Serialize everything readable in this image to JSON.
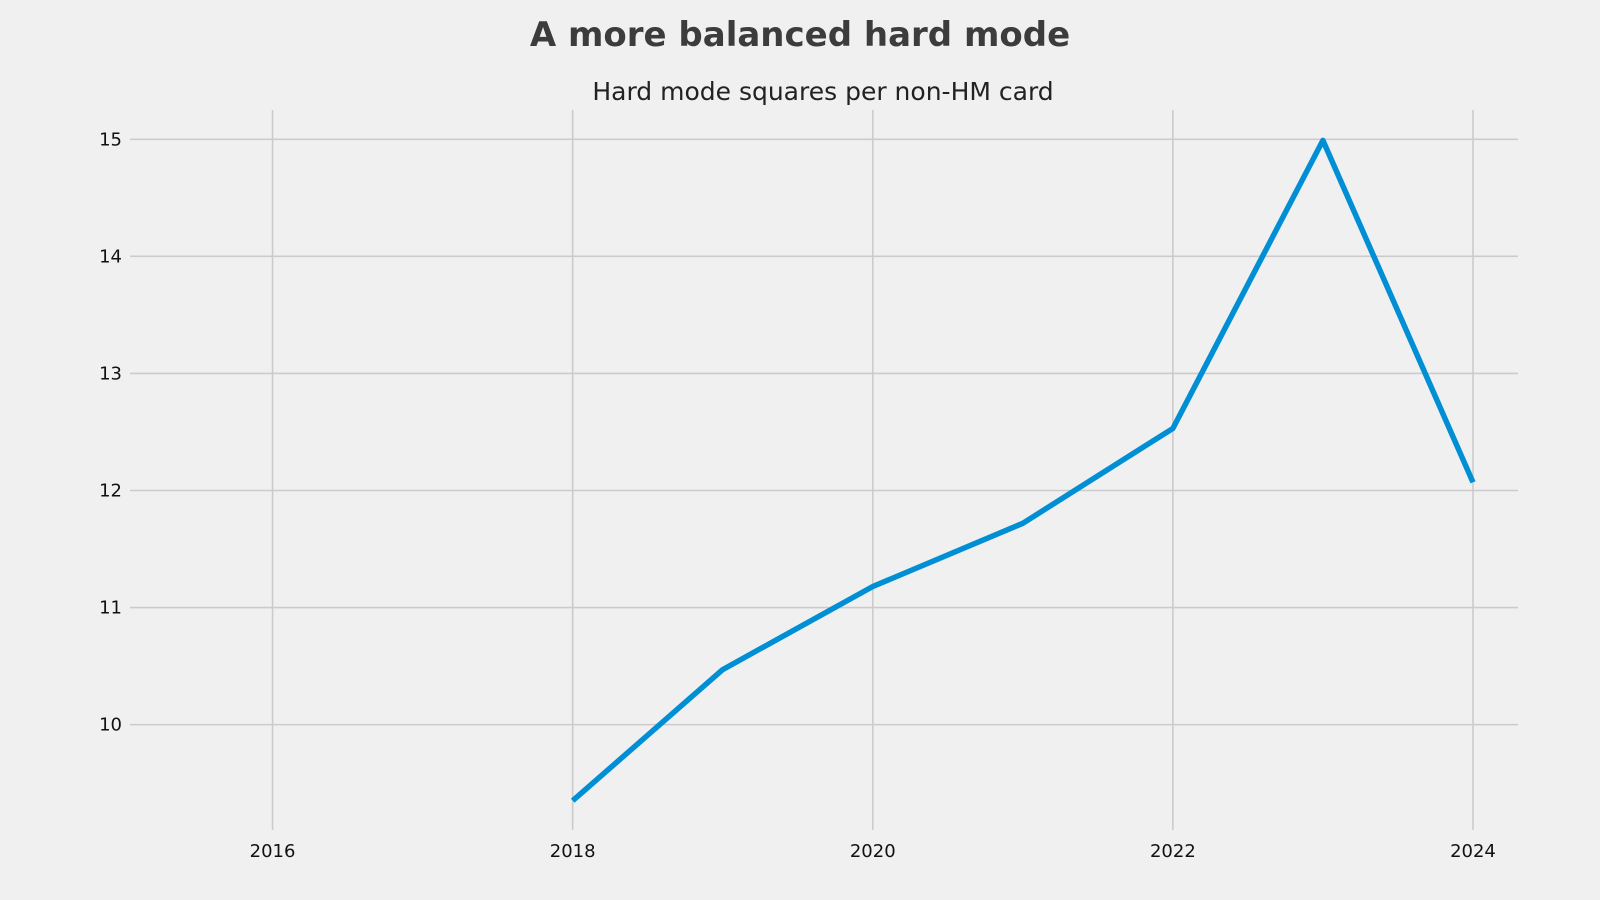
{
  "chart_data": {
    "type": "line",
    "title": "A more balanced hard mode",
    "subtitle": "Hard mode squares per non-HM card",
    "xlabel": "",
    "ylabel": "",
    "x": [
      2018,
      2019,
      2020,
      2021,
      2022,
      2023,
      2024
    ],
    "series": [
      {
        "values": [
          9.35,
          10.47,
          11.18,
          11.72,
          12.53,
          14.99,
          12.07
        ]
      }
    ],
    "xlim": [
      2015.05,
      2024.3
    ],
    "ylim": [
      9.1,
      15.25
    ],
    "xticks": [
      2016,
      2018,
      2020,
      2022,
      2024
    ],
    "yticks": [
      10,
      11,
      12,
      13,
      14,
      15
    ],
    "grid": true,
    "legend": "none",
    "colors": {
      "line": "#008fd5",
      "background": "#f0f0f0",
      "grid": "#cbcbcb"
    }
  }
}
